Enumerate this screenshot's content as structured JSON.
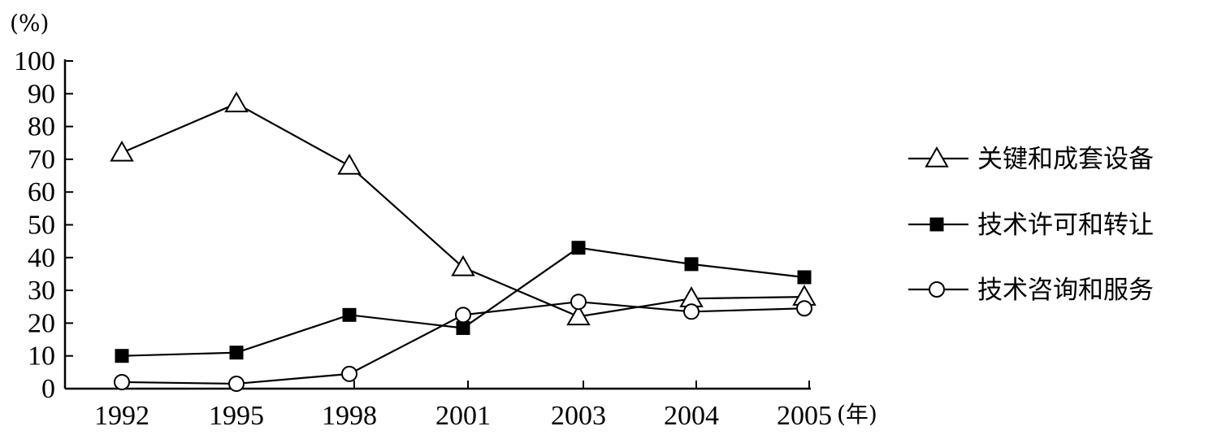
{
  "chart_data": {
    "type": "line",
    "ylabel": "(%)",
    "xunit": "(年)",
    "categories": [
      "1992",
      "1995",
      "1998",
      "2001",
      "2003",
      "2004",
      "2005"
    ],
    "ylim": [
      0,
      100
    ],
    "yticks": [
      0,
      10,
      20,
      30,
      40,
      50,
      60,
      70,
      80,
      90,
      100
    ],
    "grid": false,
    "legend_position": "right",
    "series": [
      {
        "name": "关键和成套设备",
        "marker": "triangle-open",
        "values": [
          72,
          87,
          68,
          37,
          22,
          27.5,
          28
        ]
      },
      {
        "name": "技术许可和转让",
        "marker": "square-filled",
        "values": [
          10,
          11,
          22.5,
          18.5,
          43,
          38,
          34
        ]
      },
      {
        "name": "技术咨询和服务",
        "marker": "circle-open",
        "values": [
          2,
          1.5,
          4.5,
          22.5,
          26.5,
          23.5,
          24.5
        ]
      }
    ]
  }
}
